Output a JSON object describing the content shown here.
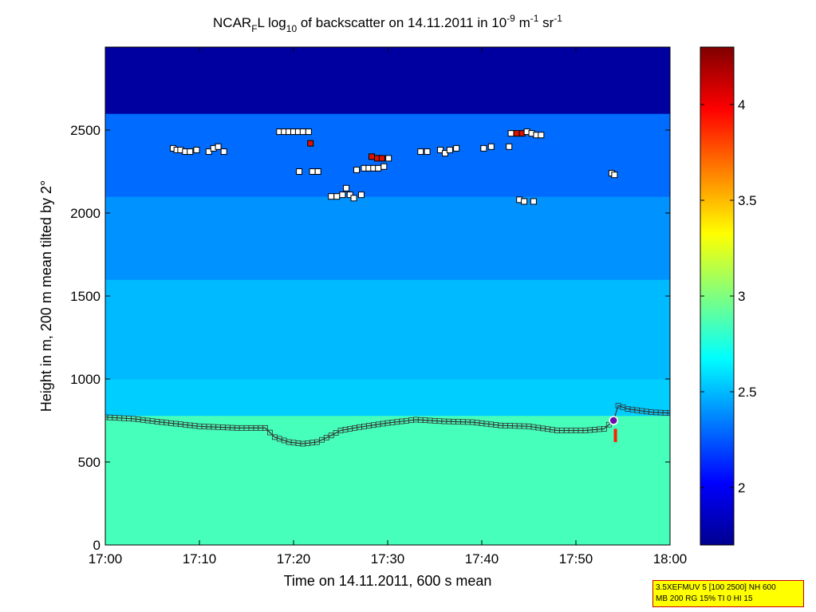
{
  "chart_data": {
    "type": "heatmap",
    "title": {
      "prefix": "NCAR",
      "prefix_sub": "F",
      "part1": "L log",
      "log_base": "10",
      "part2": " of backscatter on 14.11.2011 in 10",
      "exp1": "-9",
      "part3": " m",
      "exp2": "-1",
      "part4": " sr",
      "exp3": "-1"
    },
    "xlabel": "Time on 14.11.2011, 600 s mean",
    "ylabel": "Height in m, 200 m mean tilted by 2°",
    "xlim_minutes": [
      0,
      60
    ],
    "ylim": [
      0,
      3000
    ],
    "x_ticks": [
      {
        "label": "17:00",
        "value": 0
      },
      {
        "label": "17:10",
        "value": 10
      },
      {
        "label": "17:20",
        "value": 20
      },
      {
        "label": "17:30",
        "value": 30
      },
      {
        "label": "17:40",
        "value": 40
      },
      {
        "label": "17:50",
        "value": 50
      },
      {
        "label": "18:00",
        "value": 60
      }
    ],
    "y_ticks": [
      {
        "label": "0",
        "value": 0
      },
      {
        "label": "500",
        "value": 500
      },
      {
        "label": "1000",
        "value": 1000
      },
      {
        "label": "1500",
        "value": 1500
      },
      {
        "label": "2000",
        "value": 2000
      },
      {
        "label": "2500",
        "value": 2500
      }
    ],
    "colorbar": {
      "range": [
        1.7,
        4.3
      ],
      "ticks": [
        {
          "label": "2",
          "value": 2
        },
        {
          "label": "2.5",
          "value": 2.5
        },
        {
          "label": "3",
          "value": 3
        },
        {
          "label": "3.5",
          "value": 3.5
        },
        {
          "label": "4",
          "value": 4
        }
      ]
    },
    "field_layers": [
      {
        "from_height": 0,
        "to_height": 780,
        "value": 2.85
      },
      {
        "from_height": 780,
        "to_height": 1000,
        "value": 2.55
      },
      {
        "from_height": 1000,
        "to_height": 1600,
        "value": 2.5
      },
      {
        "from_height": 1600,
        "to_height": 2100,
        "value": 2.4
      },
      {
        "from_height": 2100,
        "to_height": 2600,
        "value": 2.3
      },
      {
        "from_height": 2600,
        "to_height": 3000,
        "value": 1.75
      }
    ],
    "mixing_layer_height": [
      [
        0,
        770
      ],
      [
        3,
        760
      ],
      [
        6,
        740
      ],
      [
        10,
        715
      ],
      [
        14,
        705
      ],
      [
        17,
        705
      ],
      [
        18,
        650
      ],
      [
        19.5,
        620
      ],
      [
        21,
        610
      ],
      [
        22.5,
        620
      ],
      [
        24,
        660
      ],
      [
        25,
        690
      ],
      [
        27,
        710
      ],
      [
        30,
        735
      ],
      [
        33,
        755
      ],
      [
        36,
        745
      ],
      [
        39,
        740
      ],
      [
        42,
        720
      ],
      [
        45,
        715
      ],
      [
        48,
        690
      ],
      [
        51,
        690
      ],
      [
        53,
        700
      ],
      [
        54,
        750
      ],
      [
        54.5,
        840
      ],
      [
        55.5,
        820
      ],
      [
        58,
        800
      ],
      [
        60,
        795
      ]
    ],
    "cloud_points": [
      {
        "t": 7.2,
        "h": 2390,
        "flag": "normal"
      },
      {
        "t": 7.6,
        "h": 2380,
        "flag": "normal"
      },
      {
        "t": 8.0,
        "h": 2380,
        "flag": "normal"
      },
      {
        "t": 8.5,
        "h": 2370,
        "flag": "normal"
      },
      {
        "t": 9.0,
        "h": 2370,
        "flag": "normal"
      },
      {
        "t": 9.7,
        "h": 2380,
        "flag": "normal"
      },
      {
        "t": 11.0,
        "h": 2370,
        "flag": "normal"
      },
      {
        "t": 11.5,
        "h": 2390,
        "flag": "normal"
      },
      {
        "t": 12.0,
        "h": 2400,
        "flag": "normal"
      },
      {
        "t": 12.6,
        "h": 2370,
        "flag": "normal"
      },
      {
        "t": 18.5,
        "h": 2490,
        "flag": "normal"
      },
      {
        "t": 19.0,
        "h": 2490,
        "flag": "normal"
      },
      {
        "t": 19.5,
        "h": 2490,
        "flag": "normal"
      },
      {
        "t": 20.0,
        "h": 2490,
        "flag": "normal"
      },
      {
        "t": 20.5,
        "h": 2490,
        "flag": "normal"
      },
      {
        "t": 21.0,
        "h": 2490,
        "flag": "normal"
      },
      {
        "t": 21.6,
        "h": 2490,
        "flag": "normal"
      },
      {
        "t": 21.8,
        "h": 2420,
        "flag": "high"
      },
      {
        "t": 20.6,
        "h": 2250,
        "flag": "normal"
      },
      {
        "t": 22.0,
        "h": 2250,
        "flag": "normal"
      },
      {
        "t": 22.6,
        "h": 2250,
        "flag": "normal"
      },
      {
        "t": 24.0,
        "h": 2100,
        "flag": "normal"
      },
      {
        "t": 24.6,
        "h": 2100,
        "flag": "normal"
      },
      {
        "t": 25.2,
        "h": 2110,
        "flag": "normal"
      },
      {
        "t": 25.6,
        "h": 2150,
        "flag": "normal"
      },
      {
        "t": 26.0,
        "h": 2110,
        "flag": "normal"
      },
      {
        "t": 26.4,
        "h": 2090,
        "flag": "normal"
      },
      {
        "t": 27.2,
        "h": 2110,
        "flag": "normal"
      },
      {
        "t": 26.7,
        "h": 2260,
        "flag": "normal"
      },
      {
        "t": 27.5,
        "h": 2270,
        "flag": "normal"
      },
      {
        "t": 28.0,
        "h": 2270,
        "flag": "normal"
      },
      {
        "t": 28.5,
        "h": 2270,
        "flag": "normal"
      },
      {
        "t": 29.0,
        "h": 2270,
        "flag": "normal"
      },
      {
        "t": 29.6,
        "h": 2280,
        "flag": "normal"
      },
      {
        "t": 28.3,
        "h": 2340,
        "flag": "high"
      },
      {
        "t": 28.9,
        "h": 2330,
        "flag": "high"
      },
      {
        "t": 29.4,
        "h": 2330,
        "flag": "high"
      },
      {
        "t": 30.1,
        "h": 2330,
        "flag": "normal"
      },
      {
        "t": 33.5,
        "h": 2370,
        "flag": "normal"
      },
      {
        "t": 34.2,
        "h": 2370,
        "flag": "normal"
      },
      {
        "t": 35.6,
        "h": 2380,
        "flag": "normal"
      },
      {
        "t": 36.1,
        "h": 2360,
        "flag": "normal"
      },
      {
        "t": 36.6,
        "h": 2380,
        "flag": "normal"
      },
      {
        "t": 37.3,
        "h": 2390,
        "flag": "normal"
      },
      {
        "t": 40.2,
        "h": 2390,
        "flag": "normal"
      },
      {
        "t": 41.0,
        "h": 2400,
        "flag": "normal"
      },
      {
        "t": 42.9,
        "h": 2400,
        "flag": "normal"
      },
      {
        "t": 43.1,
        "h": 2480,
        "flag": "normal"
      },
      {
        "t": 43.7,
        "h": 2480,
        "flag": "high"
      },
      {
        "t": 44.3,
        "h": 2480,
        "flag": "high"
      },
      {
        "t": 44.8,
        "h": 2490,
        "flag": "normal"
      },
      {
        "t": 45.3,
        "h": 2480,
        "flag": "normal"
      },
      {
        "t": 45.8,
        "h": 2470,
        "flag": "normal"
      },
      {
        "t": 46.3,
        "h": 2470,
        "flag": "normal"
      },
      {
        "t": 44.0,
        "h": 2080,
        "flag": "normal"
      },
      {
        "t": 44.5,
        "h": 2070,
        "flag": "normal"
      },
      {
        "t": 45.5,
        "h": 2070,
        "flag": "normal"
      },
      {
        "t": 53.8,
        "h": 2240,
        "flag": "normal"
      },
      {
        "t": 54.1,
        "h": 2230,
        "flag": "normal"
      }
    ],
    "special_marker": {
      "t": 54.0,
      "h": 750
    },
    "red_streak": {
      "t": 54.2,
      "h_from": 620,
      "h_to": 700
    }
  },
  "info_box": {
    "line1": "3.5XEFMUV 5 [100 2500] NH 600",
    "line2": "MB 200 RG 15% TI 0 HI 15"
  }
}
